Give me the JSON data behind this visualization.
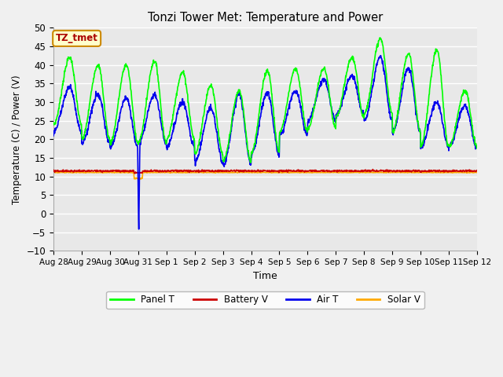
{
  "title": "Tonzi Tower Met: Temperature and Power",
  "xlabel": "Time",
  "ylabel": "Temperature (C) / Power (V)",
  "ylim": [
    -10,
    50
  ],
  "yticks": [
    -10,
    -5,
    0,
    5,
    10,
    15,
    20,
    25,
    30,
    35,
    40,
    45,
    50
  ],
  "bg_color": "#e8e8e8",
  "grid_color": "#ffffff",
  "fig_color": "#f0f0f0",
  "legend_label": "TZ_tmet",
  "series": {
    "panel_t": {
      "color": "#00ff00",
      "label": "Panel T",
      "lw": 1.2
    },
    "battery_v": {
      "color": "#cc0000",
      "label": "Battery V",
      "lw": 1.2
    },
    "air_t": {
      "color": "#0000ee",
      "label": "Air T",
      "lw": 1.2
    },
    "solar_v": {
      "color": "#ffaa00",
      "label": "Solar V",
      "lw": 1.2
    }
  },
  "xtick_labels": [
    "Aug 28",
    "Aug 29",
    "Aug 30",
    "Aug 31",
    "Sep 1",
    "Sep 2",
    "Sep 3",
    "Sep 4",
    "Sep 5",
    "Sep 6",
    "Sep 7",
    "Sep 8",
    "Sep 9",
    "Sep 10",
    "Sep 11",
    "Sep 12"
  ],
  "xtick_positions": [
    0,
    1,
    2,
    3,
    4,
    5,
    6,
    7,
    8,
    9,
    10,
    11,
    12,
    13,
    14,
    15
  ]
}
